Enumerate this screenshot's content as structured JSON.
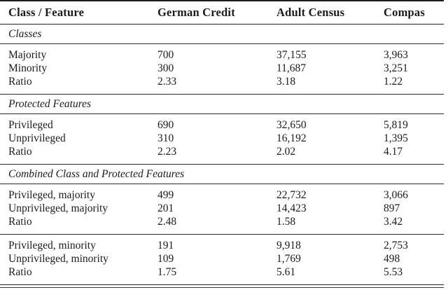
{
  "page": {
    "background": "#ffffff",
    "text_color": "#1b1b1b",
    "rule_color": "#222222"
  },
  "table": {
    "columns": [
      "Class / Feature",
      "German Credit",
      "Adult Census",
      "Compas"
    ],
    "sections": [
      {
        "header": "Classes",
        "groups": [
          [
            {
              "label": "Majority",
              "values": [
                "700",
                "37,155",
                "3,963"
              ]
            },
            {
              "label": "Minority",
              "values": [
                "300",
                "11,687",
                "3,251"
              ]
            },
            {
              "label": "Ratio",
              "values": [
                "2.33",
                "3.18",
                "1.22"
              ]
            }
          ]
        ]
      },
      {
        "header": "Protected Features",
        "groups": [
          [
            {
              "label": "Privileged",
              "values": [
                "690",
                "32,650",
                "5,819"
              ]
            },
            {
              "label": "Unprivileged",
              "values": [
                "310",
                "16,192",
                "1,395"
              ]
            },
            {
              "label": "Ratio",
              "values": [
                "2.23",
                "2.02",
                "4.17"
              ]
            }
          ]
        ]
      },
      {
        "header": "Combined Class and Protected Features",
        "groups": [
          [
            {
              "label": "Privileged, majority",
              "values": [
                "499",
                "22,732",
                "3,066"
              ]
            },
            {
              "label": "Unprivileged, majority",
              "values": [
                "201",
                "14,423",
                "897"
              ]
            },
            {
              "label": "Ratio",
              "values": [
                "2.48",
                "1.58",
                "3.42"
              ]
            }
          ],
          [
            {
              "label": "Privileged, minority",
              "values": [
                "191",
                "9,918",
                "2,753"
              ]
            },
            {
              "label": "Unprivileged, minority",
              "values": [
                "109",
                "1,769",
                "498"
              ]
            },
            {
              "label": "Ratio",
              "values": [
                "1.75",
                "5.61",
                "5.53"
              ]
            }
          ]
        ]
      }
    ]
  }
}
